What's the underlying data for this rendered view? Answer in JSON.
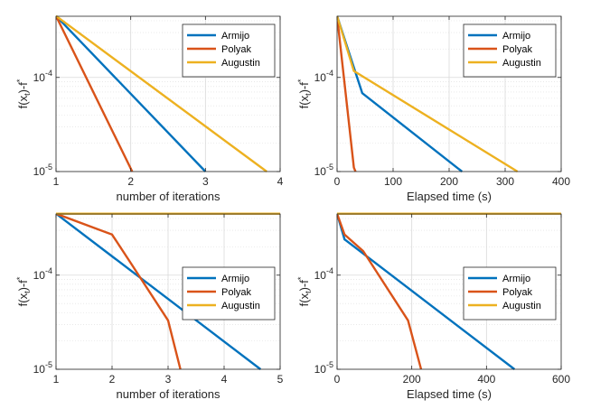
{
  "chart_data": [
    {
      "type": "line",
      "xlabel": "number of iterations",
      "ylabel": "f(x_t)-f*",
      "xlim": [
        1,
        4
      ],
      "ylim_log": [
        -5,
        -3.35
      ],
      "yscale": "log",
      "xticks": [
        "1",
        "2",
        "3",
        "4"
      ],
      "yticks": [
        {
          "base": "10",
          "exp": "-4",
          "value": 0.0001
        },
        {
          "base": "10",
          "exp": "-5",
          "value": 1e-05
        }
      ],
      "grid": true,
      "legend_position": "top-right",
      "series": [
        {
          "name": "Armijo",
          "color": "#0072BD",
          "x": [
            1,
            3
          ],
          "y": [
            0.00045,
            1e-05
          ]
        },
        {
          "name": "Polyak",
          "color": "#D95319",
          "x": [
            1,
            2.02
          ],
          "y": [
            0.00045,
            1e-05
          ]
        },
        {
          "name": "Augustin",
          "color": "#EDB120",
          "x": [
            1,
            3.82
          ],
          "y": [
            0.00045,
            1e-05
          ]
        }
      ]
    },
    {
      "type": "line",
      "xlabel": "Elapsed time (s)",
      "ylabel": "f(x_t)-f*",
      "xlim": [
        0,
        400
      ],
      "ylim_log": [
        -5,
        -3.35
      ],
      "yscale": "log",
      "xticks": [
        "0",
        "100",
        "200",
        "300",
        "400"
      ],
      "yticks": [
        {
          "base": "10",
          "exp": "-4",
          "value": 0.0001
        },
        {
          "base": "10",
          "exp": "-5",
          "value": 1e-05
        }
      ],
      "grid": true,
      "legend_position": "top-right",
      "series": [
        {
          "name": "Armijo",
          "color": "#0072BD",
          "x": [
            0,
            45,
            223
          ],
          "y": [
            0.00045,
            6.8e-05,
            1e-05
          ]
        },
        {
          "name": "Polyak",
          "color": "#D95319",
          "x": [
            0,
            30,
            33
          ],
          "y": [
            0.00045,
            1.1e-05,
            1e-05
          ]
        },
        {
          "name": "Augustin",
          "color": "#EDB120",
          "x": [
            0,
            30,
            322
          ],
          "y": [
            0.00045,
            0.000117,
            1e-05
          ]
        }
      ]
    },
    {
      "type": "line",
      "xlabel": "number of iterations",
      "ylabel": "f(x_t)-f*",
      "xlim": [
        1,
        5
      ],
      "ylim_log": [
        -5,
        -3.35
      ],
      "yscale": "log",
      "xticks": [
        "1",
        "2",
        "3",
        "4",
        "5"
      ],
      "yticks": [
        {
          "base": "10",
          "exp": "-4",
          "value": 0.0001
        },
        {
          "base": "10",
          "exp": "-5",
          "value": 1e-05
        }
      ],
      "grid": true,
      "legend_position": "right",
      "series": [
        {
          "name": "Armijo",
          "color": "#0072BD",
          "x": [
            1,
            4.65
          ],
          "y": [
            0.00045,
            1e-05
          ]
        },
        {
          "name": "Polyak",
          "color": "#D95319",
          "x": [
            1,
            2,
            2.35,
            3,
            3.22
          ],
          "y": [
            0.00045,
            0.00027,
            0.00013,
            3.3e-05,
            1e-05
          ]
        },
        {
          "name": "Augustin",
          "color": "#EDB120",
          "x": [
            1,
            5
          ],
          "y": [
            0.00045,
            0.00045
          ]
        }
      ]
    },
    {
      "type": "line",
      "xlabel": "Elapsed time (s)",
      "ylabel": "f(x_t)-f*",
      "xlim": [
        0,
        600
      ],
      "ylim_log": [
        -5,
        -3.35
      ],
      "yscale": "log",
      "xticks": [
        "0",
        "200",
        "400",
        "600"
      ],
      "yticks": [
        {
          "base": "10",
          "exp": "-4",
          "value": 0.0001
        },
        {
          "base": "10",
          "exp": "-5",
          "value": 1e-05
        }
      ],
      "grid": true,
      "legend_position": "right",
      "series": [
        {
          "name": "Armijo",
          "color": "#0072BD",
          "x": [
            0,
            20,
            475
          ],
          "y": [
            0.00045,
            0.00024,
            1e-05
          ]
        },
        {
          "name": "Polyak",
          "color": "#D95319",
          "x": [
            0,
            20,
            70,
            190,
            225
          ],
          "y": [
            0.00045,
            0.00027,
            0.00018,
            3.3e-05,
            1e-05
          ]
        },
        {
          "name": "Augustin",
          "color": "#EDB120",
          "x": [
            0,
            600
          ],
          "y": [
            0.00045,
            0.00045
          ]
        }
      ]
    }
  ]
}
